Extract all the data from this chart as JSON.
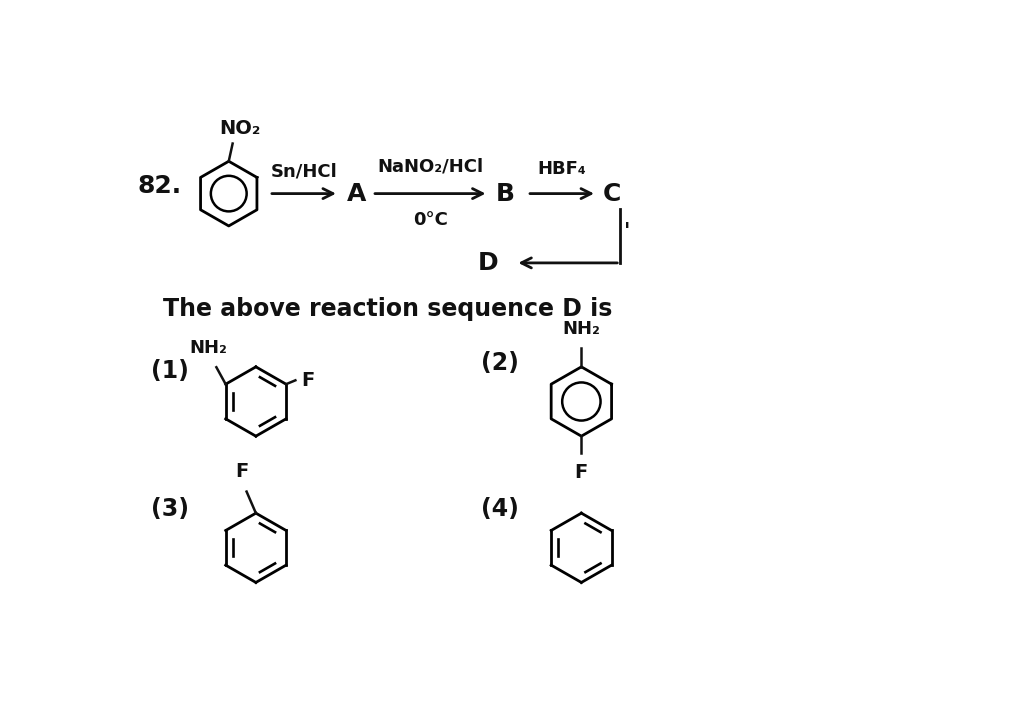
{
  "background_color": "#ffffff",
  "question_number": "82.",
  "reaction_line": {
    "reagent1": "Sn/HCl",
    "label_A": "A",
    "reagent2": "NaNO₂/HCl",
    "reagent2_sub": "0°C",
    "label_B": "B",
    "reagent3": "HBF₄",
    "label_C": "C",
    "label_D": "D",
    "no2_label": "NO₂"
  },
  "question_text": "The above reaction sequence D is",
  "options": {
    "opt1_label": "(1)",
    "opt1_nh2": "NH₂",
    "opt1_f": "F",
    "opt2_label": "(2)",
    "opt2_nh2": "NH₂",
    "opt2_f": "F",
    "opt3_label": "(3)",
    "opt3_f": "F",
    "opt4_label": "(4)"
  },
  "text_color": "#111111",
  "font_size_main": 15,
  "font_size_reagent": 12,
  "font_size_question": 17,
  "font_size_opt_label": 15
}
